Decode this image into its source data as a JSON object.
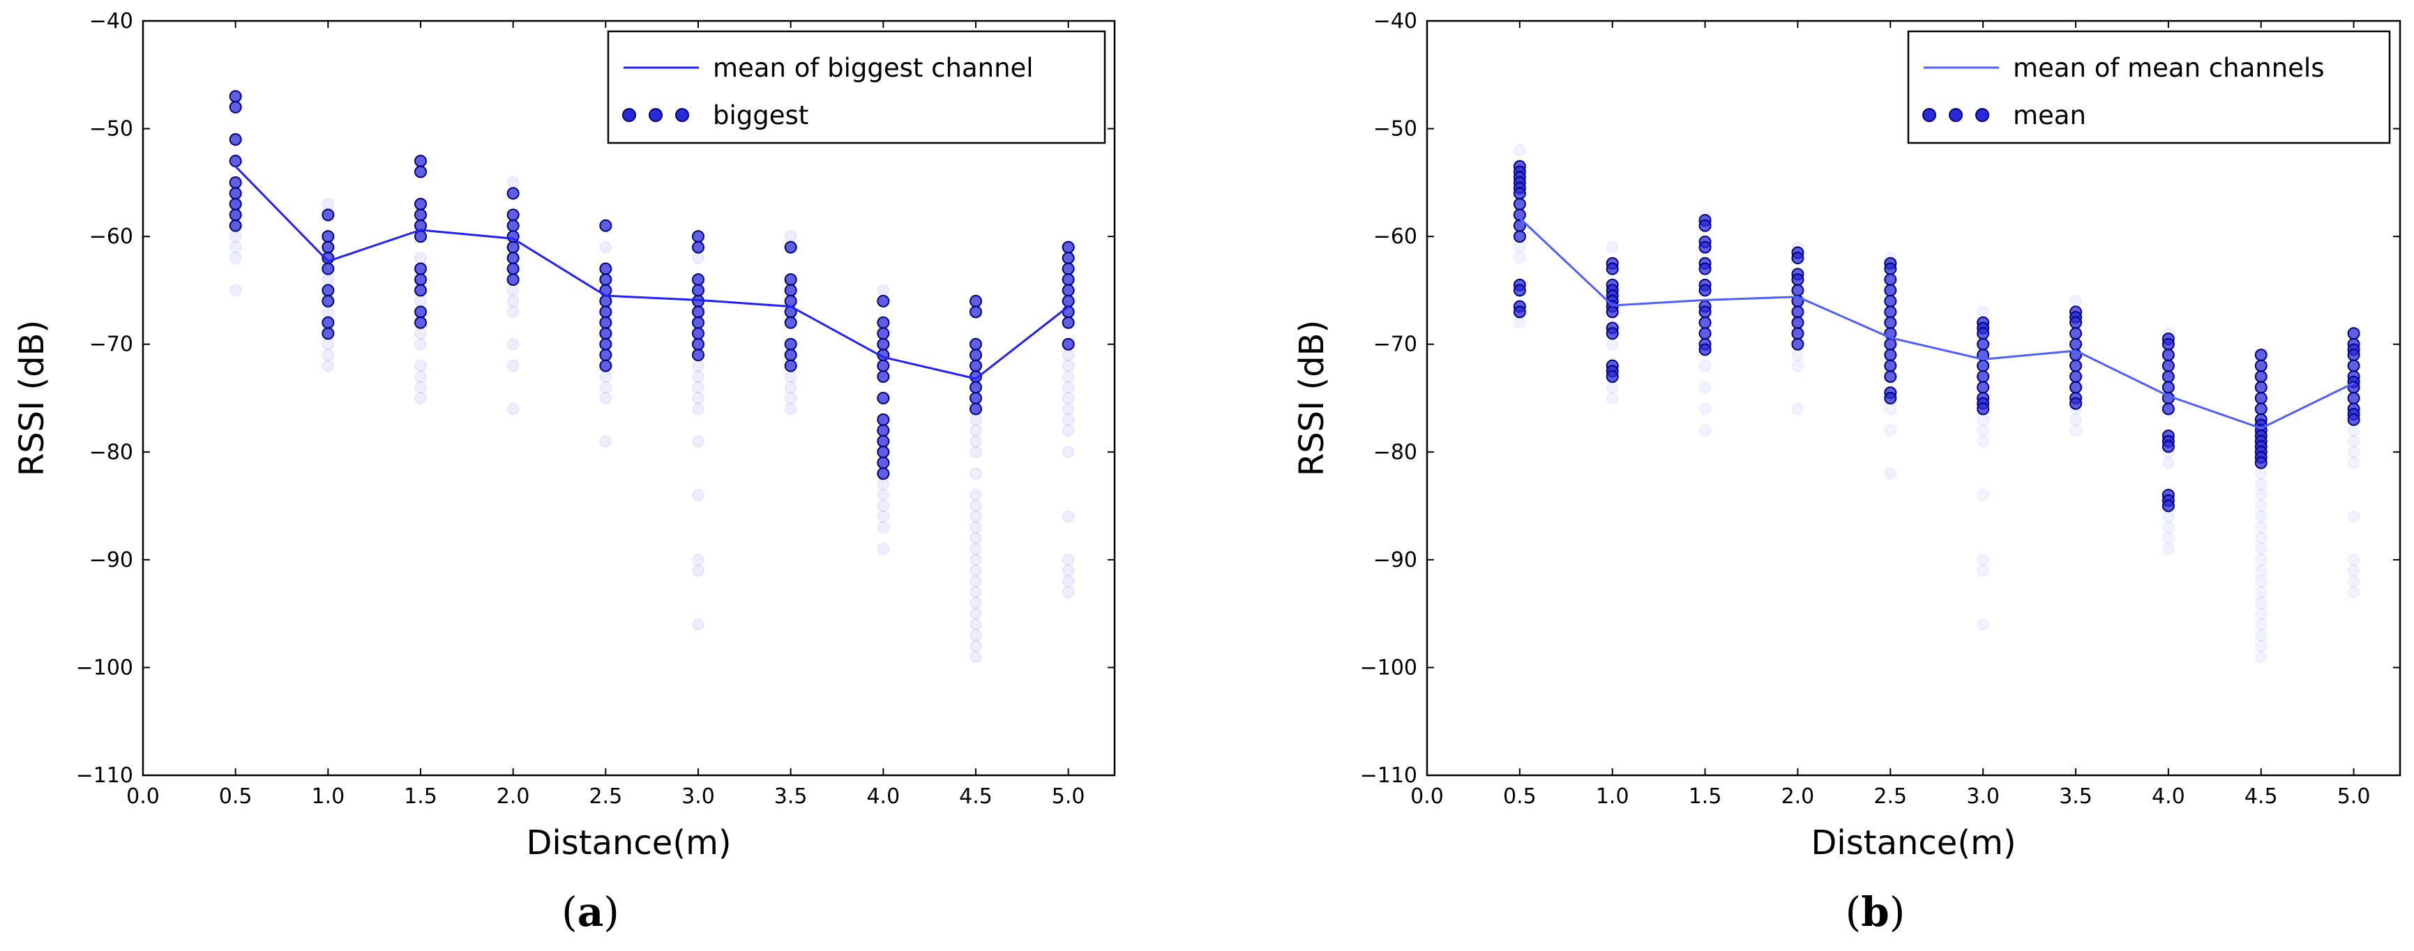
{
  "chart_data": [
    {
      "type": "scatter",
      "caption_prefix": "(",
      "caption_letter": "a",
      "caption_suffix": ")",
      "xlabel": "Distance(m)",
      "ylabel": "RSSI (dB)",
      "xlim": [
        0.0,
        5.25
      ],
      "ylim": [
        -110,
        -40
      ],
      "xticks": [
        "0.0",
        "0.5",
        "1.0",
        "1.5",
        "2.0",
        "2.5",
        "3.0",
        "3.5",
        "4.0",
        "4.5",
        "5.0"
      ],
      "yticks": [
        "−110",
        "−100",
        "−90",
        "−80",
        "−70",
        "−60",
        "−50",
        "−40"
      ],
      "legend_position": "top-right",
      "legend": [
        {
          "label": "mean of biggest channel",
          "kind": "line"
        },
        {
          "label": "biggest",
          "kind": "points"
        }
      ],
      "color": "#1f1fff",
      "marker_color": "#00008b",
      "series": [
        {
          "name": "mean of biggest channel",
          "kind": "line",
          "x": [
            0.5,
            1.0,
            1.5,
            2.0,
            2.5,
            3.0,
            3.5,
            4.0,
            4.5,
            5.0
          ],
          "y": [
            -53.5,
            -62.3,
            -59.4,
            -60.2,
            -65.5,
            -65.9,
            -66.5,
            -71.2,
            -73.2,
            -66.5
          ]
        },
        {
          "name": "biggest",
          "kind": "scatter",
          "points": [
            {
              "x": 0.5,
              "y": [
                -47,
                -48,
                -51,
                -53,
                -55,
                -56,
                -57,
                -58,
                -59
              ]
            },
            {
              "x": 1.0,
              "y": [
                -58,
                -60,
                -61,
                -62,
                -63,
                -65,
                -66,
                -68,
                -69
              ]
            },
            {
              "x": 1.5,
              "y": [
                -53,
                -54,
                -57,
                -58,
                -59,
                -60,
                -63,
                -64,
                -65,
                -67,
                -68
              ]
            },
            {
              "x": 2.0,
              "y": [
                -56,
                -58,
                -59,
                -60,
                -61,
                -62,
                -63,
                -64
              ]
            },
            {
              "x": 2.5,
              "y": [
                -59,
                -63,
                -64,
                -65,
                -66,
                -67,
                -68,
                -69,
                -70,
                -71,
                -72
              ]
            },
            {
              "x": 3.0,
              "y": [
                -60,
                -61,
                -64,
                -65,
                -66,
                -67,
                -68,
                -69,
                -70,
                -71
              ]
            },
            {
              "x": 3.5,
              "y": [
                -61,
                -64,
                -65,
                -66,
                -67,
                -68,
                -70,
                -71,
                -72
              ]
            },
            {
              "x": 4.0,
              "y": [
                -66,
                -68,
                -69,
                -70,
                -71,
                -72,
                -73,
                -75,
                -77,
                -78,
                -79,
                -80,
                -81,
                -82
              ]
            },
            {
              "x": 4.5,
              "y": [
                -66,
                -67,
                -70,
                -71,
                -72,
                -73,
                -74,
                -75,
                -76
              ]
            },
            {
              "x": 5.0,
              "y": [
                -61,
                -62,
                -63,
                -64,
                -65,
                -66,
                -67,
                -68,
                -70
              ]
            }
          ]
        },
        {
          "name": "all channels (faint)",
          "kind": "scatter-faint",
          "points": [
            {
              "x": 0.5,
              "y": [
                -57,
                -58,
                -59,
                -60,
                -61,
                -62,
                -65
              ]
            },
            {
              "x": 1.0,
              "y": [
                -57,
                -64,
                -67,
                -70,
                -71,
                -72
              ]
            },
            {
              "x": 1.5,
              "y": [
                -62,
                -66,
                -69,
                -70,
                -72,
                -73,
                -74,
                -75
              ]
            },
            {
              "x": 2.0,
              "y": [
                -55,
                -63,
                -65,
                -66,
                -67,
                -70,
                -72,
                -76
              ]
            },
            {
              "x": 2.5,
              "y": [
                -61,
                -73,
                -74,
                -75,
                -79
              ]
            },
            {
              "x": 3.0,
              "y": [
                -62,
                -72,
                -73,
                -74,
                -75,
                -76,
                -79,
                -84,
                -90,
                -91,
                -96
              ]
            },
            {
              "x": 3.5,
              "y": [
                -60,
                -73,
                -74,
                -75,
                -76
              ]
            },
            {
              "x": 4.0,
              "y": [
                -65,
                -83,
                -84,
                -85,
                -86,
                -87,
                -89
              ]
            },
            {
              "x": 4.5,
              "y": [
                -77,
                -78,
                -79,
                -80,
                -82,
                -84,
                -85,
                -86,
                -87,
                -88,
                -89,
                -90,
                -91,
                -92,
                -93,
                -94,
                -95,
                -96,
                -97,
                -98,
                -99
              ]
            },
            {
              "x": 5.0,
              "y": [
                -71,
                -72,
                -73,
                -74,
                -75,
                -76,
                -77,
                -78,
                -80,
                -86,
                -90,
                -91,
                -92,
                -93
              ]
            }
          ]
        }
      ]
    },
    {
      "type": "scatter",
      "caption_prefix": "(",
      "caption_letter": "b",
      "caption_suffix": ")",
      "xlabel": "Distance(m)",
      "ylabel": "RSSI (dB)",
      "xlim": [
        0.0,
        5.25
      ],
      "ylim": [
        -110,
        -40
      ],
      "xticks": [
        "0.0",
        "0.5",
        "1.0",
        "1.5",
        "2.0",
        "2.5",
        "3.0",
        "3.5",
        "4.0",
        "4.5",
        "5.0"
      ],
      "yticks": [
        "−110",
        "−100",
        "−90",
        "−80",
        "−70",
        "−60",
        "−50",
        "−40"
      ],
      "legend_position": "top-right",
      "legend": [
        {
          "label": "mean of mean channels",
          "kind": "line"
        },
        {
          "label": "mean",
          "kind": "points"
        }
      ],
      "color": "#4f5fff",
      "marker_color": "#00008b",
      "series": [
        {
          "name": "mean of mean channels",
          "kind": "line",
          "x": [
            0.5,
            1.0,
            1.5,
            2.0,
            2.5,
            3.0,
            3.5,
            4.0,
            4.5,
            5.0
          ],
          "y": [
            -58.3,
            -66.4,
            -65.9,
            -65.6,
            -69.4,
            -71.4,
            -70.6,
            -74.8,
            -77.8,
            -73.6
          ]
        },
        {
          "name": "mean",
          "kind": "scatter",
          "points": [
            {
              "x": 0.5,
              "y": [
                -53.5,
                -54,
                -54.5,
                -55,
                -55.5,
                -56,
                -57,
                -58,
                -59,
                -60,
                -64.5,
                -65,
                -66.5,
                -67
              ]
            },
            {
              "x": 1.0,
              "y": [
                -62.5,
                -63,
                -64.5,
                -65,
                -65.5,
                -66,
                -66.5,
                -67,
                -68.5,
                -69,
                -72,
                -72.5,
                -73
              ]
            },
            {
              "x": 1.5,
              "y": [
                -58.5,
                -59,
                -60.5,
                -61,
                -62.5,
                -63,
                -64.5,
                -65,
                -66.5,
                -67,
                -68,
                -69,
                -70,
                -70.5
              ]
            },
            {
              "x": 2.0,
              "y": [
                -61.5,
                -62,
                -63.5,
                -64,
                -65,
                -66,
                -67,
                -68,
                -69,
                -70
              ]
            },
            {
              "x": 2.5,
              "y": [
                -62.5,
                -63,
                -64,
                -65,
                -66,
                -67,
                -68,
                -69,
                -70,
                -71,
                -72,
                -73,
                -74.5,
                -75
              ]
            },
            {
              "x": 3.0,
              "y": [
                -68,
                -68.5,
                -69,
                -70,
                -71,
                -72,
                -73,
                -74,
                -75,
                -75.5,
                -76
              ]
            },
            {
              "x": 3.5,
              "y": [
                -67,
                -67.5,
                -68,
                -69,
                -70,
                -71,
                -72,
                -73,
                -74,
                -75,
                -75.5
              ]
            },
            {
              "x": 4.0,
              "y": [
                -69.5,
                -70,
                -71,
                -72,
                -73,
                -74,
                -75,
                -76,
                -78.5,
                -79,
                -79.5,
                -84,
                -84.5,
                -85
              ]
            },
            {
              "x": 4.5,
              "y": [
                -71,
                -72,
                -73,
                -74,
                -75,
                -76,
                -77,
                -77.5,
                -78,
                -78.5,
                -79,
                -79.5,
                -80,
                -80.5,
                -81
              ]
            },
            {
              "x": 5.0,
              "y": [
                -69,
                -70,
                -70.5,
                -71,
                -72,
                -73,
                -73.5,
                -74,
                -75,
                -76,
                -76.5,
                -77
              ]
            }
          ]
        },
        {
          "name": "all channels (faint)",
          "kind": "scatter-faint",
          "points": [
            {
              "x": 0.5,
              "y": [
                -52,
                -61,
                -62,
                -68
              ]
            },
            {
              "x": 1.0,
              "y": [
                -61,
                -70,
                -74,
                -75
              ]
            },
            {
              "x": 1.5,
              "y": [
                -58,
                -72,
                -74,
                -76,
                -78
              ]
            },
            {
              "x": 2.0,
              "y": [
                -61,
                -71,
                -72,
                -76
              ]
            },
            {
              "x": 2.5,
              "y": [
                -62,
                -76,
                -78,
                -82
              ]
            },
            {
              "x": 3.0,
              "y": [
                -67,
                -77,
                -78,
                -79,
                -84,
                -90,
                -91,
                -96
              ]
            },
            {
              "x": 3.5,
              "y": [
                -66,
                -76,
                -77,
                -78
              ]
            },
            {
              "x": 4.0,
              "y": [
                -69,
                -80,
                -81,
                -86,
                -87,
                -88,
                -89
              ]
            },
            {
              "x": 4.5,
              "y": [
                -82,
                -83,
                -84,
                -85,
                -86,
                -87,
                -88,
                -89,
                -90,
                -91,
                -92,
                -93,
                -94,
                -95,
                -96,
                -97,
                -98,
                -99
              ]
            },
            {
              "x": 5.0,
              "y": [
                -78,
                -79,
                -80,
                -81,
                -86,
                -90,
                -91,
                -92,
                -93
              ]
            }
          ]
        }
      ]
    }
  ]
}
